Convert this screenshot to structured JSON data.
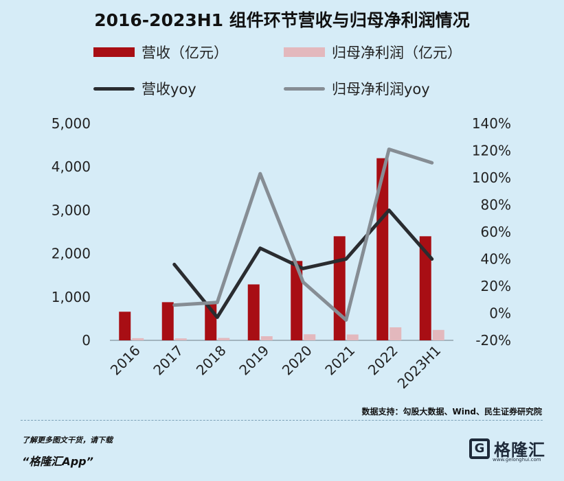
{
  "chart_data": {
    "type": "bar",
    "title": "2016-2023H1 组件环节营收与归母净利润情况",
    "categories": [
      "2016",
      "2017",
      "2018",
      "2019",
      "2020",
      "2021",
      "2022",
      "2023H1"
    ],
    "series": [
      {
        "name": "营收（亿元）",
        "type": "bar",
        "axis": "left",
        "color": "#a80e14",
        "values": [
          660,
          880,
          840,
          1290,
          1830,
          2400,
          4200,
          2400
        ]
      },
      {
        "name": "归母净利润（亿元）",
        "type": "bar",
        "axis": "left",
        "color": "#e3b8bd",
        "values": [
          50,
          45,
          55,
          95,
          140,
          135,
          300,
          240
        ]
      },
      {
        "name": "营收yoy",
        "type": "line",
        "axis": "right",
        "color": "#2a2c30",
        "values": [
          null,
          36,
          -3,
          48,
          33,
          40,
          76,
          40
        ]
      },
      {
        "name": "归母净利润yoy",
        "type": "line",
        "axis": "right",
        "color": "#868d94",
        "values": [
          null,
          6,
          8,
          103,
          23,
          -5,
          121,
          111
        ]
      }
    ],
    "left_axis": {
      "ylim": [
        0,
        5000
      ],
      "ticks": [
        "0",
        "1,000",
        "2,000",
        "3,000",
        "4,000",
        "5,000"
      ]
    },
    "right_axis": {
      "ylim": [
        -20,
        140
      ],
      "ticks": [
        "-20%",
        "0%",
        "20%",
        "40%",
        "60%",
        "80%",
        "100%",
        "120%",
        "140%"
      ]
    },
    "grid": false,
    "legend_position": "top"
  },
  "source": "数据支持：勾股大数据、Wind、民生证券研究院",
  "footer": {
    "line1": "了解更多图文干货，请下载",
    "line2": "“格隆汇App”"
  },
  "logo": {
    "mark": "G",
    "text": "格隆汇",
    "url": "www.gelonghui.com"
  },
  "colors": {
    "background": "#d6ecf7"
  }
}
